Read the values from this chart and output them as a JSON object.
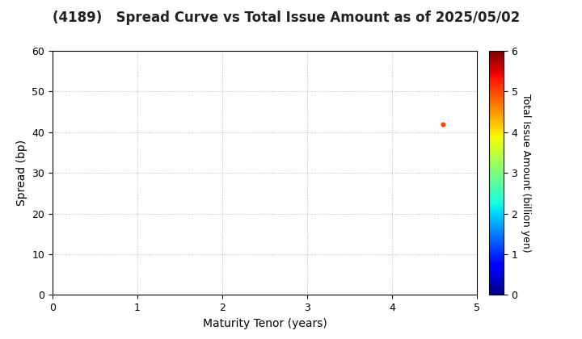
{
  "title": "(4189)   Spread Curve vs Total Issue Amount as of 2025/05/02",
  "xlabel": "Maturity Tenor (years)",
  "ylabel": "Spread (bp)",
  "colorbar_label": "Total Issue Amount (billion yen)",
  "xlim": [
    0,
    5
  ],
  "ylim": [
    0,
    60
  ],
  "xticks": [
    0,
    1,
    2,
    3,
    4,
    5
  ],
  "yticks": [
    0,
    10,
    20,
    30,
    40,
    50,
    60
  ],
  "colorbar_ticks": [
    0,
    1,
    2,
    3,
    4,
    5,
    6
  ],
  "colorbar_lim": [
    0,
    6
  ],
  "scatter_x": [
    4.6
  ],
  "scatter_y": [
    42
  ],
  "scatter_color": [
    5.0
  ],
  "scatter_size": 20,
  "background_color": "#ffffff",
  "grid_color": "#bbbbbb",
  "title_fontsize": 12,
  "axis_fontsize": 10,
  "tick_fontsize": 9,
  "colorbar_fontsize": 9,
  "colormap": "jet"
}
